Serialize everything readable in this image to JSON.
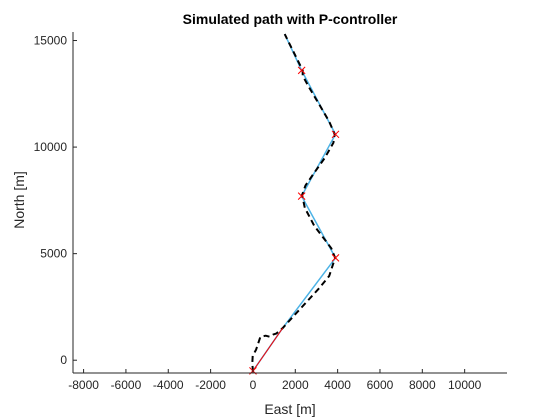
{
  "chart_data": {
    "type": "line",
    "title": "Simulated path with P-controller",
    "xlabel": "East [m]",
    "ylabel": "North [m]",
    "xlim": [
      -8500,
      12000
    ],
    "ylim": [
      -600,
      15400
    ],
    "xticks": [
      -8000,
      -6000,
      -4000,
      -2000,
      0,
      2000,
      4000,
      6000,
      8000,
      10000
    ],
    "yticks": [
      0,
      5000,
      10000,
      15000
    ],
    "xtick_labels": [
      "-8000",
      "-6000",
      "-4000",
      "-2000",
      "0",
      "2000",
      "4000",
      "6000",
      "8000",
      "10000"
    ],
    "ytick_labels": [
      "0",
      "5000",
      "10000",
      "15000"
    ],
    "grid": false,
    "box": "left-bottom",
    "series": [
      {
        "role": "planned-path",
        "style": "solid",
        "color": "#4db3e6",
        "x": [
          0,
          1400,
          3900,
          2300,
          3900,
          2300,
          1500
        ],
        "y": [
          -500,
          1500,
          4800,
          7700,
          10600,
          13600,
          15300
        ]
      },
      {
        "role": "simulated-path",
        "style": "dashed",
        "color": "#000000",
        "x": [
          0,
          -30,
          -10,
          150,
          350,
          600,
          800,
          950,
          1100,
          1400,
          1900,
          2500,
          3100,
          3600,
          3880,
          3700,
          3400,
          2900,
          2450,
          2320,
          2480,
          2900,
          3400,
          3800,
          3860,
          3600,
          3100,
          2650,
          2350,
          2350,
          1500
        ],
        "y": [
          -550,
          -150,
          200,
          500,
          1100,
          1150,
          1100,
          1200,
          1250,
          1500,
          2050,
          2700,
          3350,
          3950,
          4800,
          5250,
          5650,
          6300,
          7150,
          7750,
          8200,
          8800,
          9500,
          10200,
          10600,
          11200,
          12050,
          12800,
          13350,
          13600,
          15300
        ]
      },
      {
        "role": "off-path-segment",
        "style": "solid",
        "color": "#ff0000",
        "x": [
          0,
          1400
        ],
        "y": [
          -500,
          1500
        ]
      }
    ],
    "waypoints": {
      "marker": "x",
      "color": "#ff0000",
      "x": [
        0,
        3900,
        2300,
        3900,
        2300
      ],
      "y": [
        -500,
        4800,
        7700,
        10600,
        13600
      ]
    }
  }
}
